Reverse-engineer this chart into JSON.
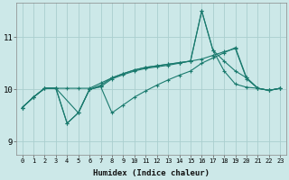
{
  "bg_color": "#cce8e8",
  "grid_color": "#aacece",
  "line_color": "#1a7a6e",
  "x_label": "Humidex (Indice chaleur)",
  "xlim": [
    -0.5,
    23.5
  ],
  "ylim": [
    8.75,
    11.65
  ],
  "yticks": [
    9,
    10,
    11
  ],
  "xticks": [
    0,
    1,
    2,
    3,
    4,
    5,
    6,
    7,
    8,
    9,
    10,
    11,
    12,
    13,
    14,
    15,
    16,
    17,
    18,
    19,
    20,
    21,
    22,
    23
  ],
  "series": [
    {
      "x": [
        0,
        1,
        2,
        3,
        4,
        5,
        6,
        7,
        8,
        9,
        10,
        11,
        12,
        13,
        14,
        15,
        16,
        17,
        18,
        19,
        20,
        21,
        22,
        23
      ],
      "y": [
        9.65,
        9.85,
        10.02,
        10.02,
        10.02,
        10.02,
        10.02,
        10.12,
        10.22,
        10.3,
        10.37,
        10.42,
        10.45,
        10.48,
        10.51,
        10.54,
        10.58,
        10.65,
        10.72,
        10.78,
        10.2,
        10.02,
        9.98,
        10.02
      ]
    },
    {
      "x": [
        0,
        1,
        2,
        3,
        5,
        6,
        7,
        8,
        9,
        10,
        11,
        12,
        13,
        14,
        15,
        16,
        17,
        18,
        19,
        20,
        21,
        22,
        23
      ],
      "y": [
        9.65,
        9.85,
        10.02,
        10.02,
        9.55,
        10.0,
        10.08,
        10.22,
        10.3,
        10.37,
        10.42,
        10.45,
        10.48,
        10.51,
        10.54,
        11.5,
        10.75,
        10.54,
        10.35,
        10.22,
        10.02,
        9.98,
        10.02
      ]
    },
    {
      "x": [
        0,
        1,
        2,
        3,
        4,
        5,
        6,
        7,
        8,
        9,
        10,
        11,
        12,
        13,
        14,
        15,
        16,
        17,
        18,
        19,
        20,
        21,
        22,
        23
      ],
      "y": [
        9.65,
        9.85,
        10.02,
        10.02,
        9.35,
        9.55,
        10.0,
        10.05,
        10.2,
        10.28,
        10.35,
        10.4,
        10.43,
        10.46,
        10.5,
        10.54,
        11.5,
        10.75,
        10.35,
        10.1,
        10.04,
        10.02,
        9.98,
        10.02
      ]
    },
    {
      "x": [
        0,
        1,
        2,
        3,
        4,
        5,
        6,
        7,
        8,
        9,
        10,
        11,
        12,
        13,
        14,
        15,
        16,
        17,
        18,
        19,
        20,
        21,
        22,
        23
      ],
      "y": [
        9.65,
        9.85,
        10.02,
        10.02,
        9.35,
        9.55,
        10.0,
        10.05,
        9.55,
        9.7,
        9.85,
        9.97,
        10.08,
        10.18,
        10.27,
        10.35,
        10.5,
        10.6,
        10.7,
        10.8,
        10.22,
        10.02,
        9.98,
        10.02
      ]
    }
  ]
}
